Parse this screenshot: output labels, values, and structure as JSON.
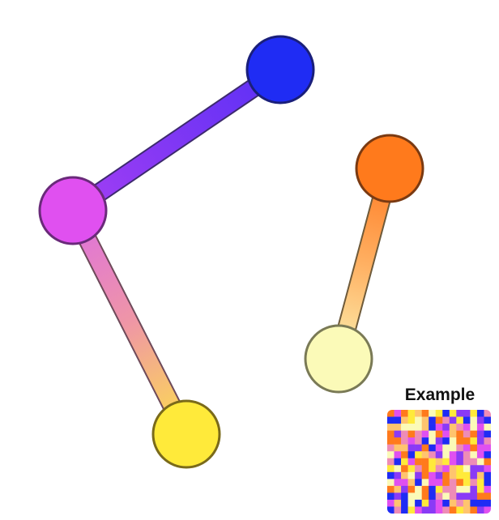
{
  "legend": {
    "title": "Example",
    "swatch_grid": {
      "rows": 15,
      "cols": 15
    }
  },
  "palette": {
    "blue": "#1f2cf4",
    "violet": "#8a3af6",
    "magenta": "#e050f0",
    "pink": "#ee8cb6",
    "orange": "#ff7a1c",
    "light_orange": "#ffc46e",
    "cream": "#fbfab8",
    "yellow": "#ffea3a",
    "node_stroke_dark": "#24247a",
    "node_stroke_brown": "#7a3a12",
    "node_stroke_olive": "#7a7a56",
    "node_stroke_yellow": "#7a6a1a"
  },
  "nodes": [
    {
      "id": "blue",
      "fill": "#1f2cf4",
      "stroke": "#1a1f7a"
    },
    {
      "id": "magenta",
      "fill": "#e050f0",
      "stroke": "#6a2a7a"
    },
    {
      "id": "yellow",
      "fill": "#ffea3a",
      "stroke": "#7a6a1a"
    },
    {
      "id": "orange",
      "fill": "#ff7a1c",
      "stroke": "#7a3a12"
    },
    {
      "id": "cream",
      "fill": "#fbfab8",
      "stroke": "#7a7a56"
    }
  ],
  "edges": [
    {
      "from": "blue",
      "to": "magenta",
      "color_from": "#6b35f5",
      "color_to": "#9a3cf5"
    },
    {
      "from": "magenta",
      "to": "yellow",
      "color_from": "#e37ad8",
      "color_to": "#fad25a"
    },
    {
      "from": "orange",
      "to": "cream",
      "color_from": "#ff8a30",
      "color_to": "#fbe5a0"
    }
  ]
}
